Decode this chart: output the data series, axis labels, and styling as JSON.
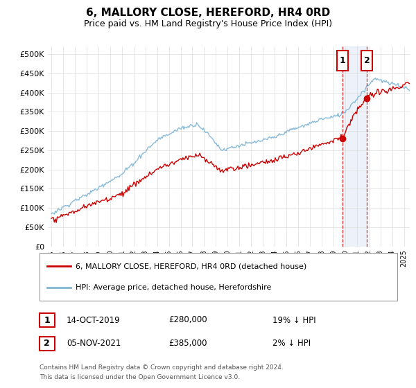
{
  "title": "6, MALLORY CLOSE, HEREFORD, HR4 0RD",
  "subtitle": "Price paid vs. HM Land Registry's House Price Index (HPI)",
  "ylabel_ticks": [
    "£0",
    "£50K",
    "£100K",
    "£150K",
    "£200K",
    "£250K",
    "£300K",
    "£350K",
    "£400K",
    "£450K",
    "£500K"
  ],
  "ytick_values": [
    0,
    50000,
    100000,
    150000,
    200000,
    250000,
    300000,
    350000,
    400000,
    450000,
    500000
  ],
  "ylim": [
    0,
    520000
  ],
  "xlim_start": 1994.7,
  "xlim_end": 2025.5,
  "xtick_years": [
    1995,
    1996,
    1997,
    1998,
    1999,
    2000,
    2001,
    2002,
    2003,
    2004,
    2005,
    2006,
    2007,
    2008,
    2009,
    2010,
    2011,
    2012,
    2013,
    2014,
    2015,
    2016,
    2017,
    2018,
    2019,
    2020,
    2021,
    2022,
    2023,
    2024,
    2025
  ],
  "hpi_color": "#7EB4D4",
  "property_color": "#CC0000",
  "vline_color": "#CC0000",
  "vline_style": "--",
  "sale1_date": 2019.79,
  "sale1_price": 280000,
  "sale2_date": 2021.84,
  "sale2_price": 385000,
  "shaded_color": "#E0E8F8",
  "legend_property": "6, MALLORY CLOSE, HEREFORD, HR4 0RD (detached house)",
  "legend_hpi": "HPI: Average price, detached house, Herefordshire",
  "table_rows": [
    {
      "num": "1",
      "date": "14-OCT-2019",
      "price": "£280,000",
      "pct": "19% ↓ HPI"
    },
    {
      "num": "2",
      "date": "05-NOV-2021",
      "price": "£385,000",
      "pct": "2% ↓ HPI"
    }
  ],
  "footnote1": "Contains HM Land Registry data © Crown copyright and database right 2024.",
  "footnote2": "This data is licensed under the Open Government Licence v3.0.",
  "background_color": "#FFFFFF",
  "grid_color": "#DDDDDD"
}
